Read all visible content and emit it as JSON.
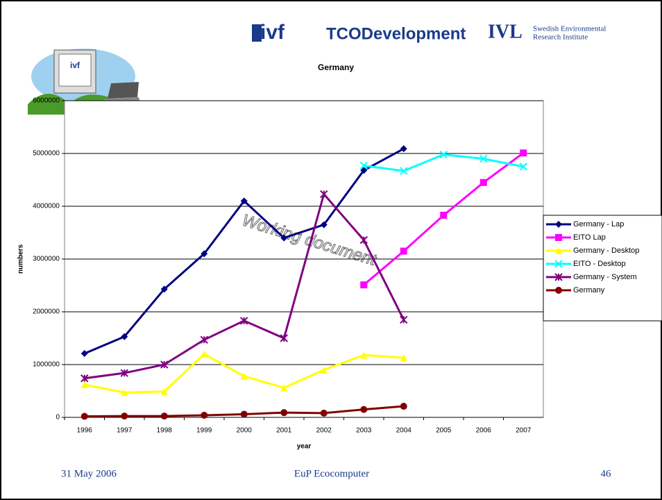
{
  "chart_data": {
    "type": "line",
    "title": "Germany",
    "x_label": "year",
    "y_label": "numbers",
    "categories": [
      "1996",
      "1997",
      "1998",
      "1999",
      "2000",
      "2001",
      "2002",
      "2003",
      "2004",
      "2005",
      "2006",
      "2007"
    ],
    "series": [
      {
        "name": "Germany - Lap",
        "color": "#000080",
        "marker": "diamond",
        "values": [
          1210000,
          1530000,
          2430000,
          3100000,
          4100000,
          3400000,
          3650000,
          4680000,
          5090000,
          null,
          null,
          null
        ]
      },
      {
        "name": "EITO Lap",
        "color": "#ff00ff",
        "marker": "square",
        "values": [
          null,
          null,
          null,
          null,
          null,
          null,
          null,
          2510000,
          3150000,
          3830000,
          4450000,
          5010000
        ]
      },
      {
        "name": "Germany - Desktop",
        "color": "#ffff00",
        "marker": "triangle",
        "values": [
          620000,
          470000,
          490000,
          1200000,
          780000,
          560000,
          900000,
          1180000,
          1130000,
          null,
          null,
          null
        ]
      },
      {
        "name": "EITO - Desktop",
        "color": "#00ffff",
        "marker": "x",
        "values": [
          null,
          null,
          null,
          null,
          null,
          null,
          null,
          4770000,
          4670000,
          4980000,
          4900000,
          4750000
        ]
      },
      {
        "name": "Germany - System",
        "color": "#800080",
        "marker": "star",
        "values": [
          740000,
          840000,
          1000000,
          1470000,
          1830000,
          1500000,
          4230000,
          3360000,
          1850000,
          null,
          null,
          null
        ]
      },
      {
        "name": "Germany",
        "color": "#800000",
        "marker": "circle",
        "values": [
          20000,
          25000,
          25000,
          40000,
          60000,
          90000,
          80000,
          150000,
          210000,
          null,
          null,
          null
        ]
      }
    ],
    "ylim": [
      0,
      6000000
    ],
    "yticks": [
      0,
      1000000,
      2000000,
      3000000,
      4000000,
      5000000,
      6000000
    ],
    "grid": true,
    "legend": "right"
  },
  "watermark": "Working document",
  "logos": {
    "ivf": "ivf",
    "tco": "TCODevelopment",
    "ivl": "IVL",
    "ivl_line1": "Swedish Environmental",
    "ivl_line2": "Research Institute"
  },
  "footer": {
    "date": "31 May 2006",
    "title": "EuP Ecocomputer",
    "page": "46"
  }
}
